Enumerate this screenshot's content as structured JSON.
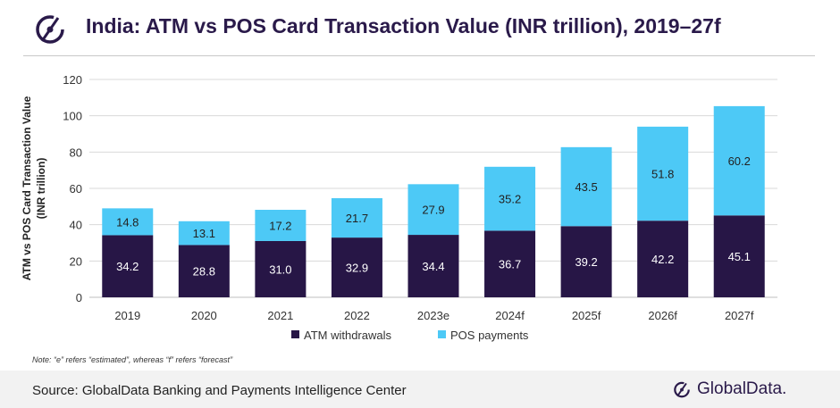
{
  "header": {
    "title": "India: ATM vs POS Card Transaction Value (INR trillion), 2019–27f"
  },
  "chart_data": {
    "type": "bar",
    "stacked": true,
    "categories": [
      "2019",
      "2020",
      "2021",
      "2022",
      "2023e",
      "2024f",
      "2025f",
      "2026f",
      "2027f"
    ],
    "series": [
      {
        "name": "ATM withdrawals",
        "color": "#271646",
        "values": [
          34.2,
          28.8,
          31.0,
          32.9,
          34.4,
          36.7,
          39.2,
          42.2,
          45.1
        ]
      },
      {
        "name": "POS payments",
        "color": "#4dc9f6",
        "values": [
          14.8,
          13.1,
          17.2,
          21.7,
          27.9,
          35.2,
          43.5,
          51.8,
          60.2
        ]
      }
    ],
    "data_labels": [
      [
        "34.2",
        "28.8",
        "31.0",
        "32.9",
        "34.4",
        "36.7",
        "39.2",
        "42.2",
        "45.1"
      ],
      [
        "14.8",
        "13.1",
        "17.2",
        "21.7",
        "27.9",
        "35.2",
        "43.5",
        "51.8",
        "60.2"
      ]
    ],
    "ylabel_line1": "ATM vs POS Card Transaction  Value",
    "ylabel_line2": "(INR trillion)",
    "ylim": [
      0,
      120
    ],
    "yticks": [
      0,
      20,
      40,
      60,
      80,
      100,
      120
    ],
    "grid": true,
    "legend_position": "bottom"
  },
  "note": "Note: “e” refers “estimated”, whereas “f” refers “forecast”",
  "footer": {
    "source": "Source: GlobalData Banking and Payments Intelligence Center",
    "brand": "GlobalData."
  }
}
